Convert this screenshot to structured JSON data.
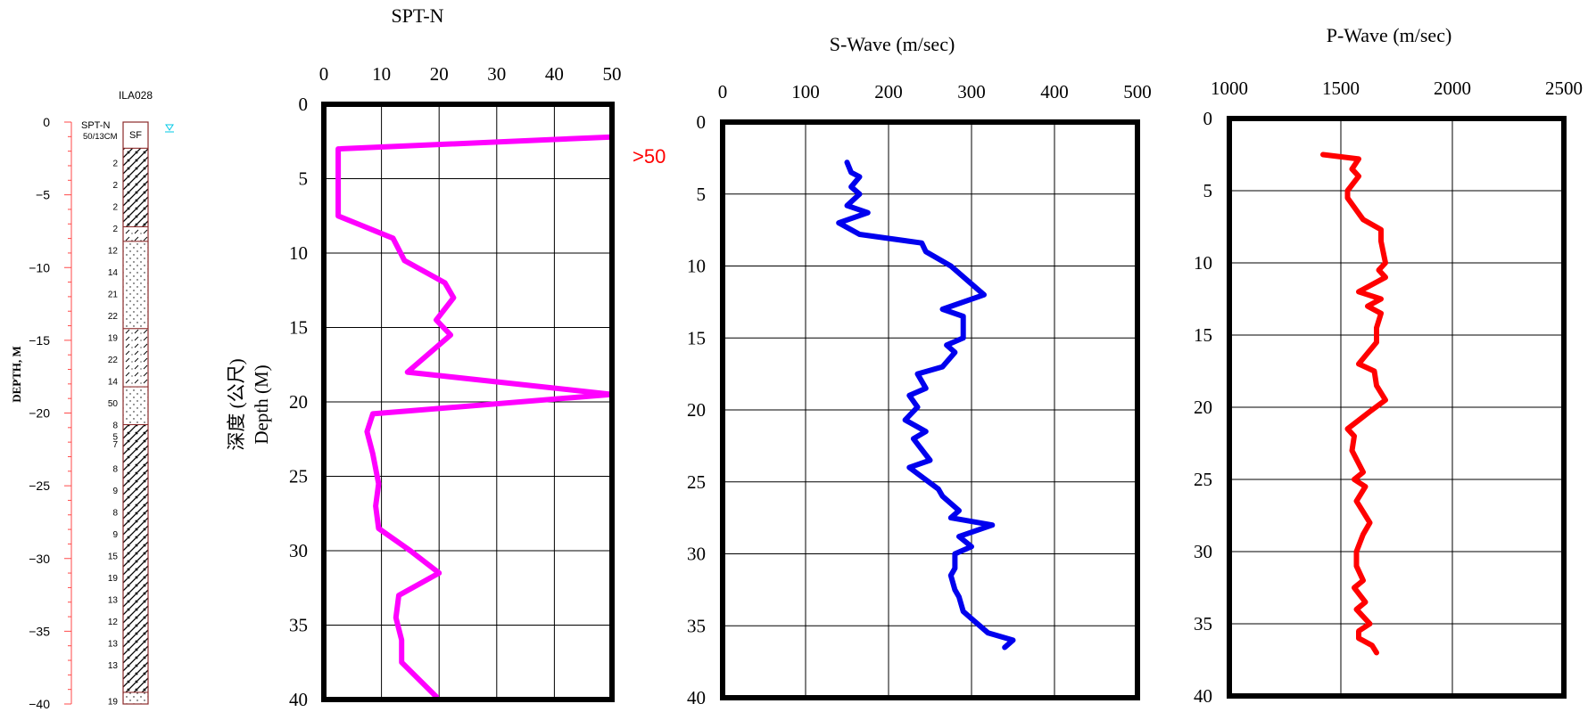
{
  "colors": {
    "spt_line": "#ff00ff",
    "swave_line": "#0000ee",
    "pwave_line": "#ff0000",
    "log_axis": "#ff4a4a",
    "water_mark": "#00c8e6",
    "gt50_label": "#ff0000"
  },
  "borehole_log": {
    "title": "ILA028",
    "depth_label": "DEPTH, M",
    "spt_header": "SPT-N",
    "spt_header_value": "50/13CM",
    "surface_code": "SF",
    "water_table_icon": "water-table-icon",
    "depth_ticks": [
      "0",
      "−5",
      "−10",
      "−15",
      "−20",
      "−25",
      "−30",
      "−35",
      "−40"
    ],
    "depth_tick_values": [
      0,
      -5,
      -10,
      -15,
      -20,
      -25,
      -30,
      -35,
      -40
    ],
    "layers": [
      {
        "top": 0,
        "bottom": 1.8,
        "pattern": "fill"
      },
      {
        "top": 1.8,
        "bottom": 7.2,
        "pattern": "hatch"
      },
      {
        "top": 7.2,
        "bottom": 8.2,
        "pattern": "dash"
      },
      {
        "top": 8.2,
        "bottom": 14.2,
        "pattern": "dots"
      },
      {
        "top": 14.2,
        "bottom": 18.2,
        "pattern": "dash"
      },
      {
        "top": 18.2,
        "bottom": 20.8,
        "pattern": "dots"
      },
      {
        "top": 20.8,
        "bottom": 39.2,
        "pattern": "hatch"
      },
      {
        "top": 39.2,
        "bottom": 40,
        "pattern": "dots"
      }
    ],
    "spt_samples": [
      {
        "depth": 2.8,
        "value": "2"
      },
      {
        "depth": 4.3,
        "value": "2"
      },
      {
        "depth": 5.8,
        "value": "2"
      },
      {
        "depth": 7.3,
        "value": "2"
      },
      {
        "depth": 8.8,
        "value": "12"
      },
      {
        "depth": 10.3,
        "value": "14"
      },
      {
        "depth": 11.8,
        "value": "21"
      },
      {
        "depth": 13.3,
        "value": "22"
      },
      {
        "depth": 14.8,
        "value": "19"
      },
      {
        "depth": 16.3,
        "value": "22"
      },
      {
        "depth": 17.8,
        "value": "14"
      },
      {
        "depth": 19.3,
        "value": "50"
      },
      {
        "depth": 20.8,
        "value": "8"
      },
      {
        "depth": 21.6,
        "value": "5"
      },
      {
        "depth": 22.1,
        "value": "7"
      },
      {
        "depth": 23.8,
        "value": "8"
      },
      {
        "depth": 25.3,
        "value": "9"
      },
      {
        "depth": 26.8,
        "value": "8"
      },
      {
        "depth": 28.3,
        "value": "9"
      },
      {
        "depth": 29.8,
        "value": "15"
      },
      {
        "depth": 31.3,
        "value": "19"
      },
      {
        "depth": 32.8,
        "value": "13"
      },
      {
        "depth": 34.3,
        "value": "12"
      },
      {
        "depth": 35.8,
        "value": "13"
      },
      {
        "depth": 37.3,
        "value": "13"
      },
      {
        "depth": 39.8,
        "value": "19"
      }
    ]
  },
  "chart_data": [
    {
      "type": "line",
      "title": "SPT-N",
      "ylabel_zh": "深度 (公尺)",
      "ylabel": "Depth (M)",
      "xlim": [
        0,
        50
      ],
      "ylim": [
        0,
        40
      ],
      "y_inverted": true,
      "x_ticks": [
        "0",
        "10",
        "20",
        "30",
        "40",
        "50"
      ],
      "y_ticks": [
        "0",
        "5",
        "10",
        "15",
        "20",
        "25",
        "30",
        "35",
        "40"
      ],
      "grid": true,
      "annotation": ">50",
      "annotation_at": {
        "x": 50,
        "y": 2.2
      },
      "series": [
        {
          "x": [
            50,
            2.5,
            2.5,
            2.5,
            12,
            14,
            21,
            22.5,
            19.5,
            22,
            14.5,
            50,
            8.5,
            7.5,
            8.5,
            9.5,
            9,
            9.5,
            15,
            20,
            13,
            12.5,
            13.5,
            13.5,
            19.5
          ],
          "y": [
            2.2,
            3,
            4.5,
            7.5,
            9,
            10.5,
            12,
            13,
            14.5,
            15.5,
            18,
            19.5,
            20.8,
            22,
            23.5,
            25.5,
            27,
            28.5,
            30,
            31.5,
            33,
            34.5,
            36,
            37.5,
            39.8
          ]
        }
      ]
    },
    {
      "type": "line",
      "title": "S-Wave (m/sec)",
      "xlim": [
        0,
        500
      ],
      "ylim": [
        0,
        40
      ],
      "y_inverted": true,
      "x_ticks": [
        "0",
        "100",
        "200",
        "300",
        "400",
        "500"
      ],
      "y_ticks": [
        "0",
        "5",
        "10",
        "15",
        "20",
        "25",
        "30",
        "35",
        "40"
      ],
      "grid": true,
      "series": [
        {
          "x": [
            150,
            155,
            165,
            155,
            165,
            150,
            175,
            140,
            165,
            240,
            245,
            275,
            315,
            265,
            290,
            290,
            270,
            280,
            265,
            235,
            245,
            225,
            235,
            220,
            245,
            230,
            250,
            225,
            260,
            265,
            285,
            275,
            325,
            285,
            300,
            280,
            280,
            275,
            280,
            285,
            290,
            300,
            320,
            350,
            340
          ],
          "y": [
            2.8,
            3.5,
            3.8,
            4.5,
            5.0,
            5.8,
            6.3,
            7.0,
            7.8,
            8.4,
            9.0,
            10.0,
            12.0,
            13.0,
            13.5,
            15.0,
            15.5,
            16.0,
            17.0,
            17.5,
            18.5,
            19.0,
            19.8,
            20.7,
            21.5,
            22.0,
            23.5,
            24.0,
            25.5,
            26.0,
            27.0,
            27.5,
            28.0,
            28.8,
            29.5,
            30.0,
            31.0,
            31.5,
            32.5,
            33.0,
            34.0,
            34.5,
            35.5,
            36.0,
            36.5
          ]
        }
      ]
    },
    {
      "type": "line",
      "title": "P-Wave (m/sec)",
      "xlim": [
        1000,
        2500
      ],
      "ylim": [
        0,
        40
      ],
      "y_inverted": true,
      "x_ticks": [
        "1000",
        "1500",
        "2000",
        "2500"
      ],
      "y_ticks": [
        "0",
        "5",
        "10",
        "15",
        "20",
        "25",
        "30",
        "35",
        "40"
      ],
      "grid": true,
      "series": [
        {
          "x": [
            1420,
            1580,
            1550,
            1580,
            1530,
            1530,
            1600,
            1680,
            1680,
            1700,
            1670,
            1700,
            1580,
            1680,
            1620,
            1680,
            1660,
            1660,
            1580,
            1650,
            1660,
            1700,
            1630,
            1530,
            1560,
            1550,
            1600,
            1560,
            1610,
            1570,
            1630,
            1600,
            1570,
            1570,
            1600,
            1560,
            1610,
            1570,
            1630,
            1580,
            1580,
            1640,
            1660
          ],
          "y": [
            2.5,
            2.8,
            3.5,
            4.0,
            5.0,
            5.5,
            7.0,
            7.7,
            8.5,
            10.0,
            10.5,
            11.0,
            12.0,
            12.5,
            13.0,
            13.5,
            14.5,
            15.5,
            17.0,
            17.5,
            18.5,
            19.5,
            20.3,
            21.5,
            22.0,
            23.0,
            24.5,
            25.0,
            25.5,
            26.5,
            28.0,
            28.8,
            30.0,
            31.0,
            32.0,
            32.5,
            33.5,
            34.0,
            35.0,
            35.5,
            36.0,
            36.5,
            37.0
          ]
        }
      ]
    }
  ]
}
